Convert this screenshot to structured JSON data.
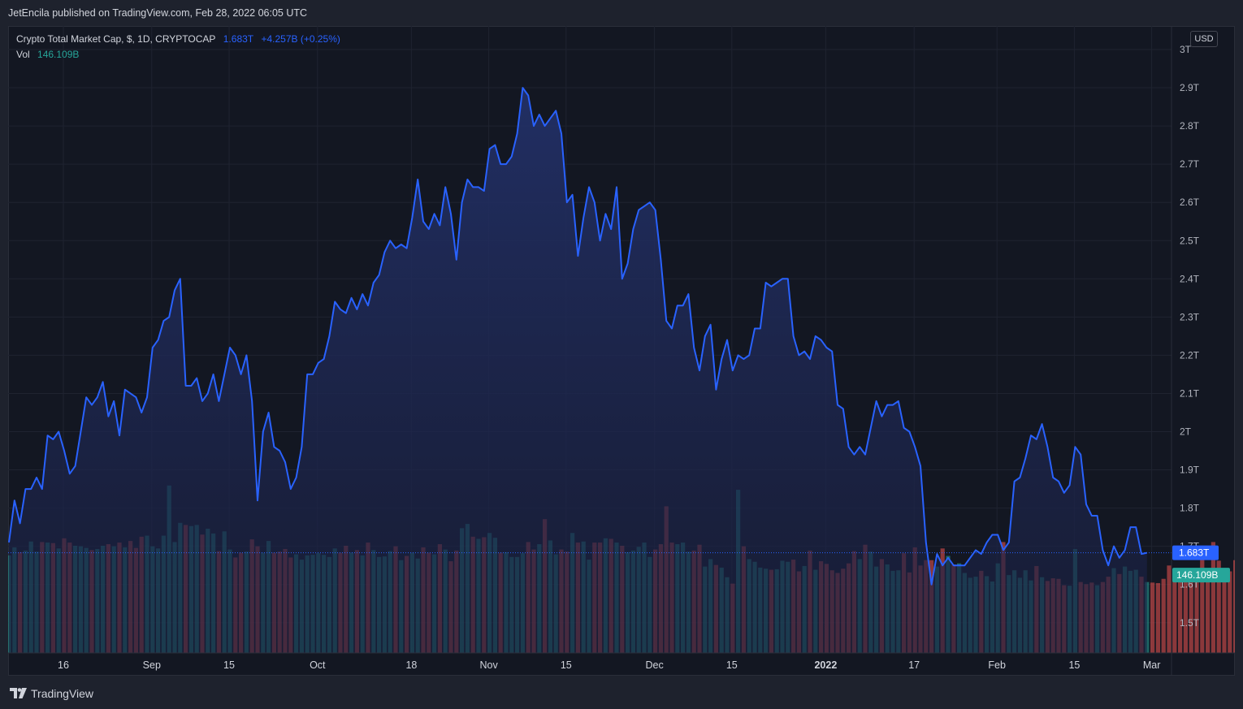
{
  "header": {
    "publisher_text": "JetEncila published on TradingView.com, Feb 28, 2022 06:05 UTC"
  },
  "legend": {
    "symbol": "Crypto Total Market Cap, $, 1D, CRYPTOCAP",
    "last": "1.683T",
    "change": "+4.257B (+0.25%)",
    "vol_label": "Vol",
    "vol_value": "146.109B"
  },
  "currency": "USD",
  "footer": {
    "brand": "TradingView"
  },
  "colors": {
    "line": "#2962ff",
    "area_top": "#1f2a57",
    "volume_up": "#26a69a",
    "volume_down": "#ef5350",
    "background": "#131722"
  },
  "chart_data": {
    "type": "area",
    "price_axis": {
      "ticks": [
        "3T",
        "2.9T",
        "2.8T",
        "2.7T",
        "2.6T",
        "2.5T",
        "2.4T",
        "2.3T",
        "2.2T",
        "2.1T",
        "2T",
        "1.9T",
        "1.8T",
        "1.7T",
        "1.6T",
        "1.5T"
      ],
      "tick_values": [
        3.0,
        2.9,
        2.8,
        2.7,
        2.6,
        2.5,
        2.4,
        2.3,
        2.2,
        2.1,
        2.0,
        1.9,
        1.8,
        1.7,
        1.6,
        1.5
      ],
      "unit": "T",
      "last_price_label": "1.683T",
      "last_price": 1.683,
      "last_volume_label": "146.109B"
    },
    "time_axis": {
      "labels": [
        {
          "text": "16",
          "day": 0,
          "bold": false
        },
        {
          "text": "Sep",
          "day": 16,
          "bold": false
        },
        {
          "text": "15",
          "day": 30,
          "bold": false
        },
        {
          "text": "Oct",
          "day": 46,
          "bold": false
        },
        {
          "text": "18",
          "day": 63,
          "bold": false
        },
        {
          "text": "Nov",
          "day": 77,
          "bold": false
        },
        {
          "text": "15",
          "day": 91,
          "bold": false
        },
        {
          "text": "Dec",
          "day": 107,
          "bold": false
        },
        {
          "text": "15",
          "day": 121,
          "bold": false
        },
        {
          "text": "2022",
          "day": 138,
          "bold": true
        },
        {
          "text": "17",
          "day": 154,
          "bold": false
        },
        {
          "text": "Feb",
          "day": 169,
          "bold": false
        },
        {
          "text": "15",
          "day": 183,
          "bold": false
        },
        {
          "text": "Mar",
          "day": 197,
          "bold": false
        }
      ]
    },
    "series": [
      {
        "values": [
          1.71,
          1.82,
          1.76,
          1.85,
          1.85,
          1.88,
          1.85,
          1.99,
          1.98,
          2.0,
          1.95,
          1.89,
          1.91,
          2.0,
          2.09,
          2.07,
          2.09,
          2.13,
          2.04,
          2.08,
          1.99,
          2.11,
          2.1,
          2.09,
          2.05,
          2.09,
          2.22,
          2.24,
          2.29,
          2.3,
          2.37,
          2.4,
          2.12,
          2.12,
          2.14,
          2.08,
          2.1,
          2.15,
          2.08,
          2.15,
          2.22,
          2.2,
          2.15,
          2.2,
          2.08,
          1.82,
          2.0,
          2.05,
          1.96,
          1.95,
          1.92,
          1.85,
          1.88,
          1.96,
          2.15,
          2.15,
          2.18,
          2.19,
          2.25,
          2.34,
          2.32,
          2.31,
          2.35,
          2.32,
          2.36,
          2.33,
          2.39,
          2.41,
          2.47,
          2.5,
          2.48,
          2.49,
          2.48,
          2.56,
          2.66,
          2.55,
          2.53,
          2.57,
          2.54,
          2.64,
          2.57,
          2.45,
          2.6,
          2.66,
          2.64,
          2.64,
          2.63,
          2.74,
          2.75,
          2.7,
          2.7,
          2.72,
          2.78,
          2.9,
          2.88,
          2.8,
          2.83,
          2.8,
          2.82,
          2.84,
          2.78,
          2.6,
          2.62,
          2.46,
          2.56,
          2.64,
          2.6,
          2.5,
          2.57,
          2.53,
          2.64,
          2.4,
          2.44,
          2.53,
          2.58,
          2.59,
          2.6,
          2.58,
          2.45,
          2.29,
          2.27,
          2.33,
          2.33,
          2.36,
          2.22,
          2.16,
          2.25,
          2.28,
          2.11,
          2.19,
          2.24,
          2.16,
          2.2,
          2.19,
          2.2,
          2.27,
          2.27,
          2.39,
          2.38,
          2.39,
          2.4,
          2.4,
          2.25,
          2.2,
          2.21,
          2.19,
          2.25,
          2.24,
          2.22,
          2.21,
          2.07,
          2.06,
          1.96,
          1.94,
          1.96,
          1.94,
          2.01,
          2.08,
          2.04,
          2.07,
          2.07,
          2.08,
          2.01,
          2.0,
          1.96,
          1.91,
          1.71,
          1.6,
          1.68,
          1.65,
          1.67,
          1.65,
          1.65,
          1.65,
          1.67,
          1.69,
          1.68,
          1.71,
          1.73,
          1.73,
          1.69,
          1.71,
          1.87,
          1.88,
          1.93,
          1.99,
          1.98,
          2.02,
          1.96,
          1.88,
          1.87,
          1.84,
          1.86,
          1.96,
          1.94,
          1.81,
          1.78,
          1.78,
          1.69,
          1.65,
          1.7,
          1.67,
          1.69,
          1.75,
          1.75,
          1.68,
          1.683
        ]
      }
    ],
    "volume": {
      "unit": "B",
      "max_value": 300,
      "values": [
        183,
        198,
        189,
        192,
        209,
        190,
        208,
        207,
        206,
        196,
        215,
        207,
        201,
        200,
        197,
        193,
        195,
        201,
        204,
        200,
        207,
        198,
        210,
        197,
        218,
        220,
        200,
        196,
        220,
        314,
        208,
        244,
        240,
        238,
        240,
        222,
        233,
        224,
        191,
        228,
        194,
        179,
        188,
        190,
        213,
        200,
        188,
        210,
        188,
        190,
        195,
        179,
        185,
        175,
        183,
        184,
        187,
        184,
        180,
        196,
        188,
        201,
        188,
        193,
        183,
        207,
        193,
        180,
        181,
        191,
        200,
        174,
        182,
        188,
        177,
        198,
        188,
        185,
        204,
        194,
        172,
        192,
        234,
        242,
        218,
        214,
        217,
        225,
        216,
        188,
        189,
        180,
        180,
        187,
        208,
        194,
        204,
        251,
        211,
        185,
        194,
        190,
        225,
        207,
        209,
        175,
        207,
        207,
        215,
        214,
        207,
        201,
        189,
        192,
        199,
        207,
        180,
        194,
        204,
        275,
        207,
        204,
        207,
        190,
        192,
        203,
        162,
        176,
        165,
        160,
        142,
        130,
        306,
        200,
        176,
        171,
        160,
        158,
        156,
        157,
        173,
        171,
        175,
        153,
        163,
        192,
        156,
        172,
        167,
        155,
        150,
        158,
        168,
        191,
        176,
        203,
        190,
        162,
        176,
        166,
        154,
        155,
        187,
        151,
        198,
        164,
        174,
        174,
        162,
        196,
        182,
        166,
        168,
        150,
        141,
        143,
        154,
        144,
        134,
        168,
        208,
        146,
        155,
        141,
        155,
        136,
        163,
        142,
        135,
        140,
        139,
        127,
        126,
        195,
        133,
        129,
        132,
        127,
        133,
        143,
        159,
        148,
        162,
        154,
        156,
        143,
        133,
        132,
        131,
        139,
        164,
        151,
        144,
        147,
        151,
        154,
        178,
        154,
        208,
        173,
        151,
        153,
        174,
        153,
        145,
        146,
        146
      ]
    }
  }
}
